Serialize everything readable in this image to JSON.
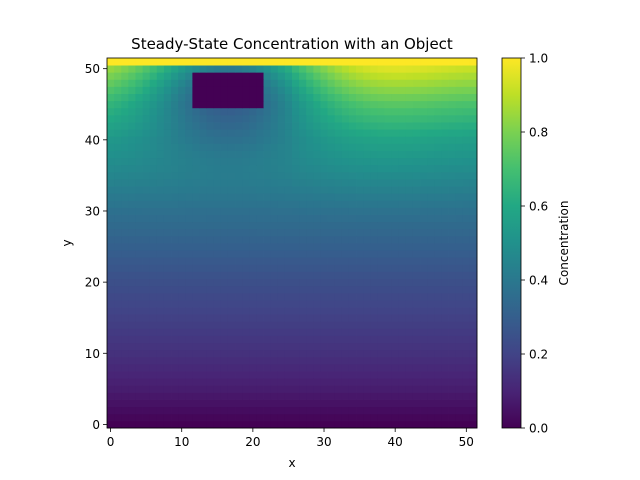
{
  "chart_data": {
    "type": "heatmap",
    "title": "Steady-State Concentration with an Object",
    "xlabel": "x",
    "ylabel": "y",
    "xlim": [
      -0.5,
      51.5
    ],
    "ylim": [
      -0.5,
      51.5
    ],
    "xticks": [
      0,
      10,
      20,
      30,
      40,
      50
    ],
    "yticks": [
      0,
      10,
      20,
      30,
      40,
      50
    ],
    "grid_size": [
      52,
      52
    ],
    "colormap": "viridis",
    "colorbar": {
      "label": "Concentration",
      "range": [
        0.0,
        1.0
      ],
      "ticks": [
        "0.0",
        "0.2",
        "0.4",
        "0.6",
        "0.8",
        "1.0"
      ]
    },
    "boundary": {
      "top_value": 1.0,
      "bottom_value": 0.0
    },
    "object": {
      "x_range": [
        12,
        21
      ],
      "y_range": [
        45,
        49
      ],
      "value": 0.0
    },
    "far_field_profile": [
      [
        0,
        0.0
      ],
      [
        5,
        0.08
      ],
      [
        10,
        0.14
      ],
      [
        20,
        0.24
      ],
      [
        30,
        0.37
      ],
      [
        40,
        0.55
      ],
      [
        45,
        0.7
      ],
      [
        50,
        0.9
      ],
      [
        51,
        1.0
      ]
    ]
  }
}
